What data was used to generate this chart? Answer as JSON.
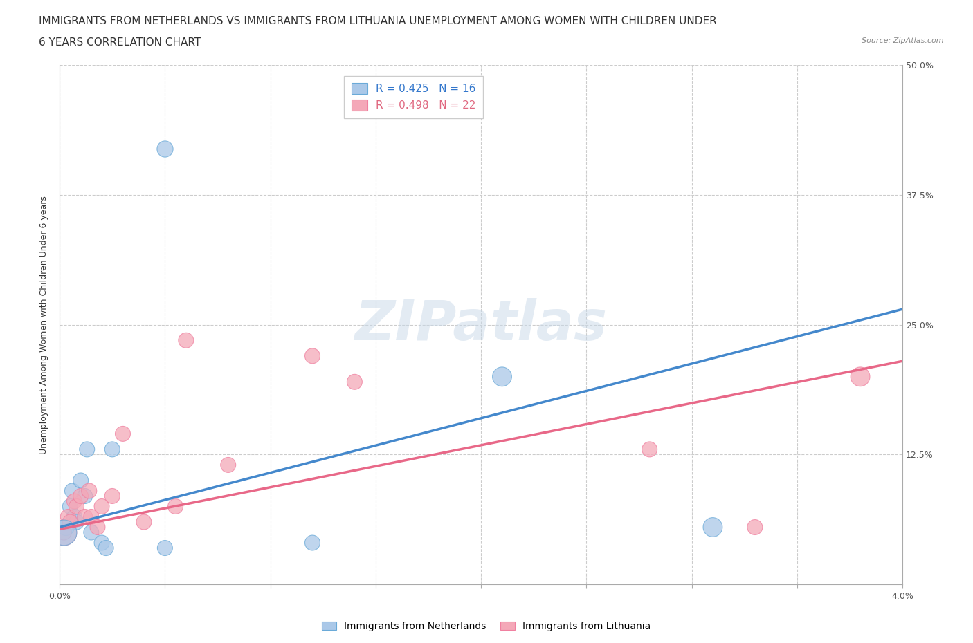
{
  "title_line1": "IMMIGRANTS FROM NETHERLANDS VS IMMIGRANTS FROM LITHUANIA UNEMPLOYMENT AMONG WOMEN WITH CHILDREN UNDER",
  "title_line2": "6 YEARS CORRELATION CHART",
  "source": "Source: ZipAtlas.com",
  "ylabel": "Unemployment Among Women with Children Under 6 years",
  "xlim": [
    0.0,
    0.04
  ],
  "ylim": [
    0.0,
    0.5
  ],
  "xticks": [
    0.0,
    0.005,
    0.01,
    0.015,
    0.02,
    0.025,
    0.03,
    0.035,
    0.04
  ],
  "xticklabels": [
    "0.0%",
    "",
    "",
    "",
    "",
    "",
    "",
    "",
    "4.0%"
  ],
  "yticks": [
    0.0,
    0.125,
    0.25,
    0.375,
    0.5
  ],
  "right_yticklabels": [
    "",
    "12.5%",
    "25.0%",
    "37.5%",
    "50.0%"
  ],
  "netherlands_R": 0.425,
  "netherlands_N": 16,
  "lithuania_R": 0.498,
  "lithuania_N": 22,
  "netherlands_color": "#aac8e8",
  "lithuania_color": "#f4a8b8",
  "netherlands_edge_color": "#6aaad8",
  "lithuania_edge_color": "#f080a0",
  "netherlands_line_color": "#4488cc",
  "lithuania_line_color": "#e86888",
  "background_color": "#ffffff",
  "grid_color": "#cccccc",
  "netherlands_x": [
    0.0003,
    0.0005,
    0.0006,
    0.0007,
    0.0008,
    0.001,
    0.0012,
    0.0013,
    0.0015,
    0.002,
    0.0022,
    0.0025,
    0.005,
    0.012,
    0.021,
    0.031
  ],
  "netherlands_y": [
    0.055,
    0.075,
    0.09,
    0.065,
    0.06,
    0.1,
    0.085,
    0.13,
    0.05,
    0.04,
    0.035,
    0.13,
    0.035,
    0.04,
    0.2,
    0.055
  ],
  "netherlands_sizes": [
    120,
    100,
    100,
    100,
    100,
    100,
    100,
    100,
    100,
    100,
    100,
    100,
    100,
    100,
    160,
    160
  ],
  "lithuania_x": [
    0.0002,
    0.0004,
    0.0005,
    0.0007,
    0.0008,
    0.001,
    0.0012,
    0.0014,
    0.0015,
    0.0018,
    0.002,
    0.0025,
    0.003,
    0.004,
    0.0055,
    0.006,
    0.008,
    0.012,
    0.014,
    0.028,
    0.033,
    0.038
  ],
  "lithuania_y": [
    0.05,
    0.065,
    0.06,
    0.08,
    0.075,
    0.085,
    0.065,
    0.09,
    0.065,
    0.055,
    0.075,
    0.085,
    0.145,
    0.06,
    0.075,
    0.235,
    0.115,
    0.22,
    0.195,
    0.13,
    0.055,
    0.2
  ],
  "lithuania_sizes": [
    100,
    100,
    100,
    100,
    100,
    100,
    100,
    100,
    100,
    100,
    100,
    100,
    100,
    100,
    100,
    100,
    100,
    100,
    100,
    100,
    100,
    160
  ],
  "title_fontsize": 11,
  "axis_label_fontsize": 9,
  "tick_fontsize": 9,
  "legend_fontsize": 11
}
